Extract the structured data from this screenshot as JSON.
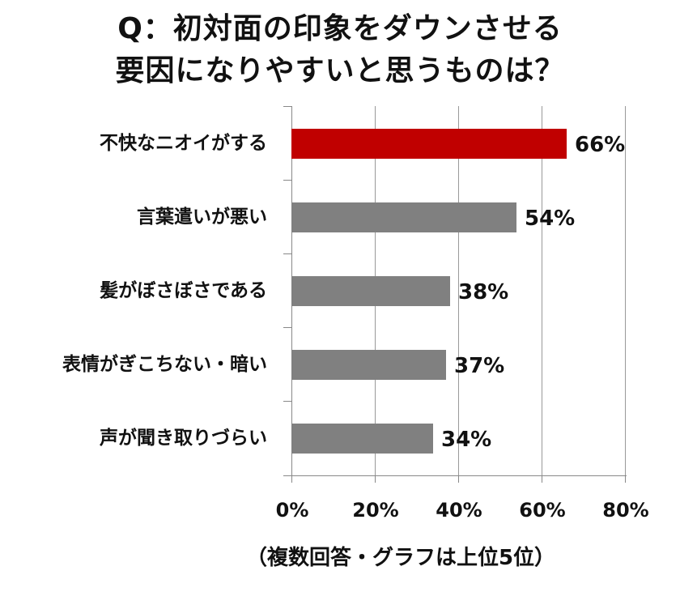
{
  "title": {
    "line1": "Q：初対面の印象をダウンさせる",
    "line2": "要因になりやすいと思うものは？"
  },
  "note": "（複数回答・グラフは上位5位）",
  "colors": {
    "highlight": "#C00000",
    "default": "#808080",
    "grid": "#999999"
  },
  "axis": {
    "ticks": [
      "0%",
      "20%",
      "40%",
      "60%",
      "80%"
    ]
  },
  "bars": [
    {
      "label": "不快なニオイがする",
      "value": 66,
      "display": "66%",
      "color": "#C00000"
    },
    {
      "label": "言葉遣いが悪い",
      "value": 54,
      "display": "54%",
      "color": "#808080"
    },
    {
      "label": "髪がぼさぼさである",
      "value": 38,
      "display": "38%",
      "color": "#808080"
    },
    {
      "label": "表情がぎこちない・暗い",
      "value": 37,
      "display": "37%",
      "color": "#808080"
    },
    {
      "label": "声が聞き取りづらい",
      "value": 34,
      "display": "34%",
      "color": "#808080"
    }
  ],
  "chart_data": {
    "type": "bar",
    "orientation": "horizontal",
    "title": "Q：初対面の印象をダウンさせる要因になりやすいと思うものは？",
    "subtitle": "（複数回答・グラフは上位5位）",
    "categories": [
      "不快なニオイがする",
      "言葉遣いが悪い",
      "髪がぼさぼさである",
      "表情がぎこちない・暗い",
      "声が聞き取りづらい"
    ],
    "values": [
      66,
      54,
      38,
      37,
      34
    ],
    "unit": "%",
    "xlabel": "",
    "ylabel": "",
    "xlim": [
      0,
      80
    ],
    "xticks": [
      "0%",
      "20%",
      "40%",
      "60%",
      "80%"
    ],
    "grid": "vertical",
    "legend": "none",
    "highlight_index": 0
  }
}
